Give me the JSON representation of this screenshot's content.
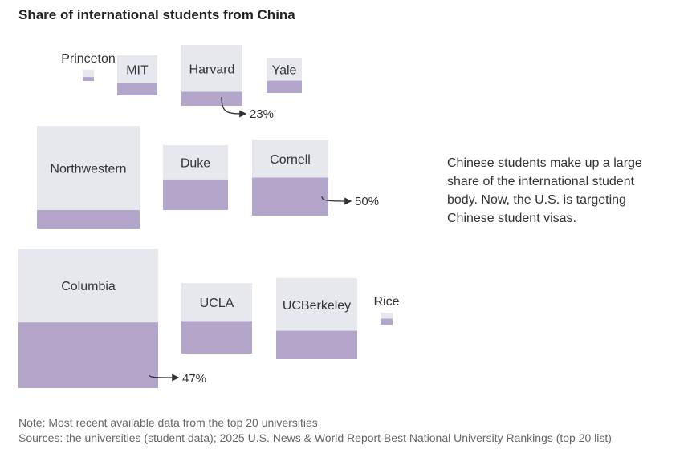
{
  "chart_data": {
    "type": "proportional-squares",
    "title": "Share of international students from China",
    "items": [
      {
        "name": "Princeton",
        "share": 0.35,
        "size": 0.05
      },
      {
        "name": "MIT",
        "share": 0.3,
        "size": 0.23
      },
      {
        "name": "Harvard",
        "share": 0.23,
        "size": 0.39
      },
      {
        "name": "Yale",
        "share": 0.35,
        "size": 0.15
      },
      {
        "name": "Northwestern",
        "share": 0.18,
        "size": 1.0
      },
      {
        "name": "Duke",
        "share": 0.47,
        "size": 0.39
      },
      {
        "name": "Cornell",
        "share": 0.5,
        "size": 0.55
      },
      {
        "name": "Columbia",
        "share": 0.47,
        "size": 1.82
      },
      {
        "name": "UCLA",
        "share": 0.46,
        "size": 0.48
      },
      {
        "name": "UCBerkeley",
        "share": 0.35,
        "size": 0.62
      },
      {
        "name": "Rice",
        "share": 0.5,
        "size": 0.013
      }
    ],
    "annotations": [
      {
        "target": "Harvard",
        "text": "23%"
      },
      {
        "target": "Cornell",
        "text": "50%"
      },
      {
        "target": "Columbia",
        "text": "47%"
      }
    ]
  },
  "callout": "Chinese students make up a large share of the international student body. Now, the U.S. is targeting Chinese student visas.",
  "footer": {
    "note": "Note: Most recent available data from the top 20 universities",
    "sources": "Sources: the universities (student data); 2025 U.S. News & World Report Best National University Rankings (top 20 list)"
  },
  "colors": {
    "box": "#e6e8ed",
    "fill": "#b4a6cb",
    "arrow": "#333333"
  }
}
